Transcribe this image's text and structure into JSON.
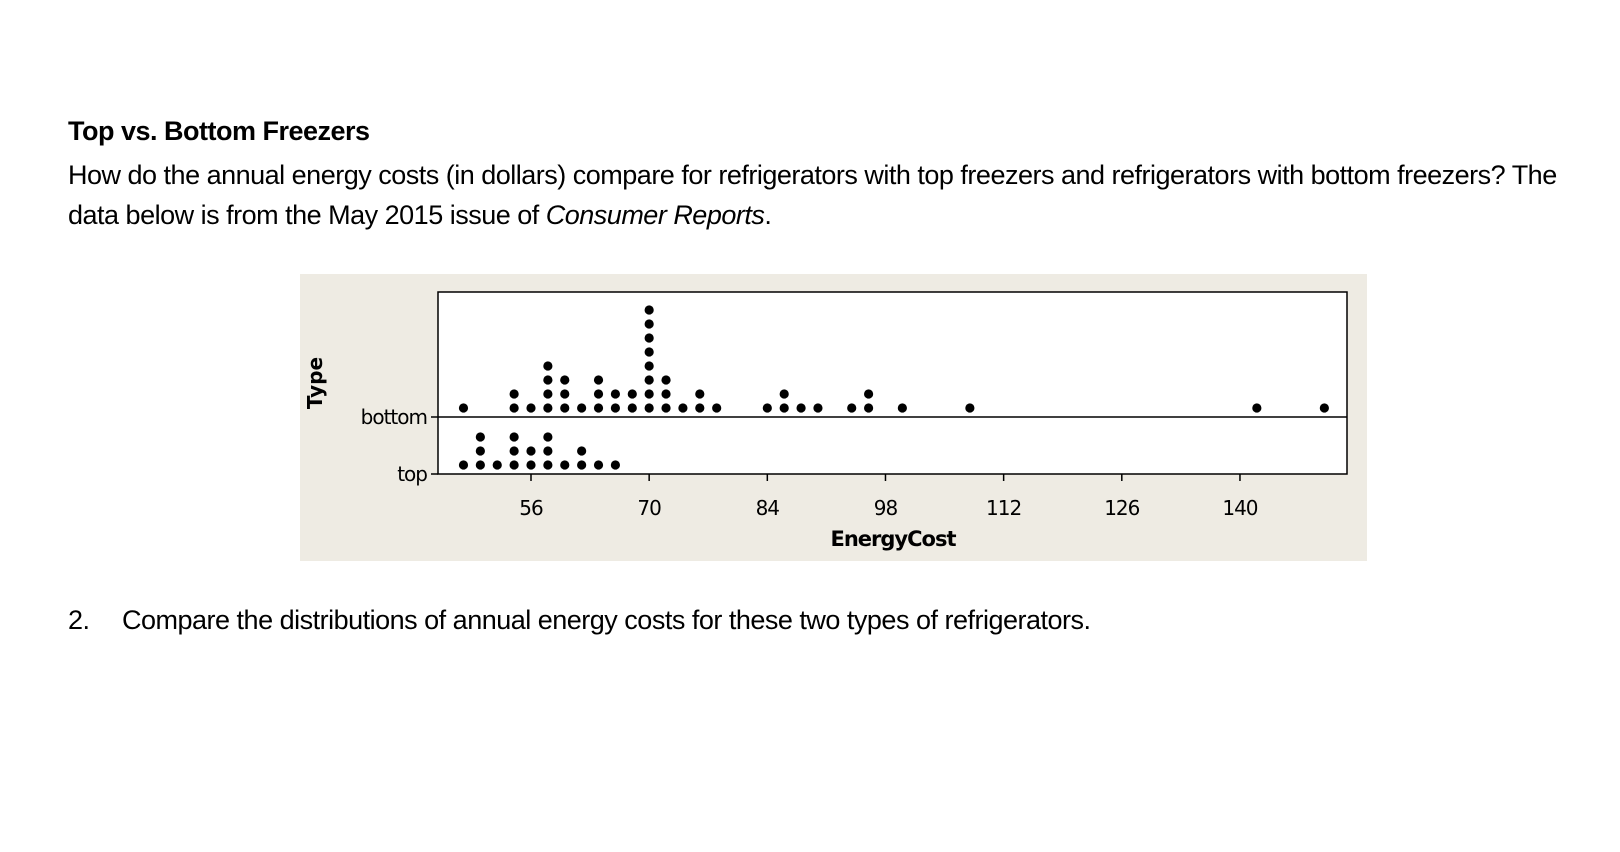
{
  "document": {
    "title": "Top vs. Bottom Freezers",
    "intro_text": "How do the annual energy costs (in dollars) compare for refrigerators with top freezers and refrigerators with bottom freezers?  The data below is from the May 2015 issue of ",
    "intro_source": "Consumer Reports",
    "intro_end": ".",
    "question_number": "2.",
    "question_text": "Compare the distributions of annual energy costs for these two types of refrigerators."
  },
  "chart_data": {
    "type": "dotplot",
    "xlabel": "EnergyCost",
    "ylabel": "Type",
    "xlim": [
      45,
      153
    ],
    "xticks": [
      56,
      70,
      84,
      98,
      112,
      126,
      140
    ],
    "categories": [
      "bottom",
      "top"
    ],
    "grid": false,
    "colors": {
      "panel": "#eeebe3",
      "plot": "#ffffff",
      "dot": "#000000"
    },
    "series": [
      {
        "name": "bottom",
        "points": [
          {
            "x": 48,
            "count": 1
          },
          {
            "x": 54,
            "count": 2
          },
          {
            "x": 56,
            "count": 1
          },
          {
            "x": 58,
            "count": 4
          },
          {
            "x": 60,
            "count": 3
          },
          {
            "x": 62,
            "count": 1
          },
          {
            "x": 64,
            "count": 3
          },
          {
            "x": 66,
            "count": 2
          },
          {
            "x": 68,
            "count": 2
          },
          {
            "x": 70,
            "count": 8
          },
          {
            "x": 72,
            "count": 3
          },
          {
            "x": 74,
            "count": 1
          },
          {
            "x": 76,
            "count": 2
          },
          {
            "x": 78,
            "count": 1
          },
          {
            "x": 84,
            "count": 1
          },
          {
            "x": 86,
            "count": 2
          },
          {
            "x": 88,
            "count": 1
          },
          {
            "x": 90,
            "count": 1
          },
          {
            "x": 94,
            "count": 1
          },
          {
            "x": 96,
            "count": 2
          },
          {
            "x": 100,
            "count": 1
          },
          {
            "x": 108,
            "count": 1
          },
          {
            "x": 142,
            "count": 1
          },
          {
            "x": 150,
            "count": 1
          }
        ]
      },
      {
        "name": "top",
        "points": [
          {
            "x": 48,
            "count": 1
          },
          {
            "x": 50,
            "count": 3
          },
          {
            "x": 52,
            "count": 1
          },
          {
            "x": 54,
            "count": 3
          },
          {
            "x": 56,
            "count": 2
          },
          {
            "x": 58,
            "count": 3
          },
          {
            "x": 60,
            "count": 1
          },
          {
            "x": 62,
            "count": 2
          },
          {
            "x": 64,
            "count": 1
          },
          {
            "x": 66,
            "count": 1
          }
        ]
      }
    ]
  }
}
